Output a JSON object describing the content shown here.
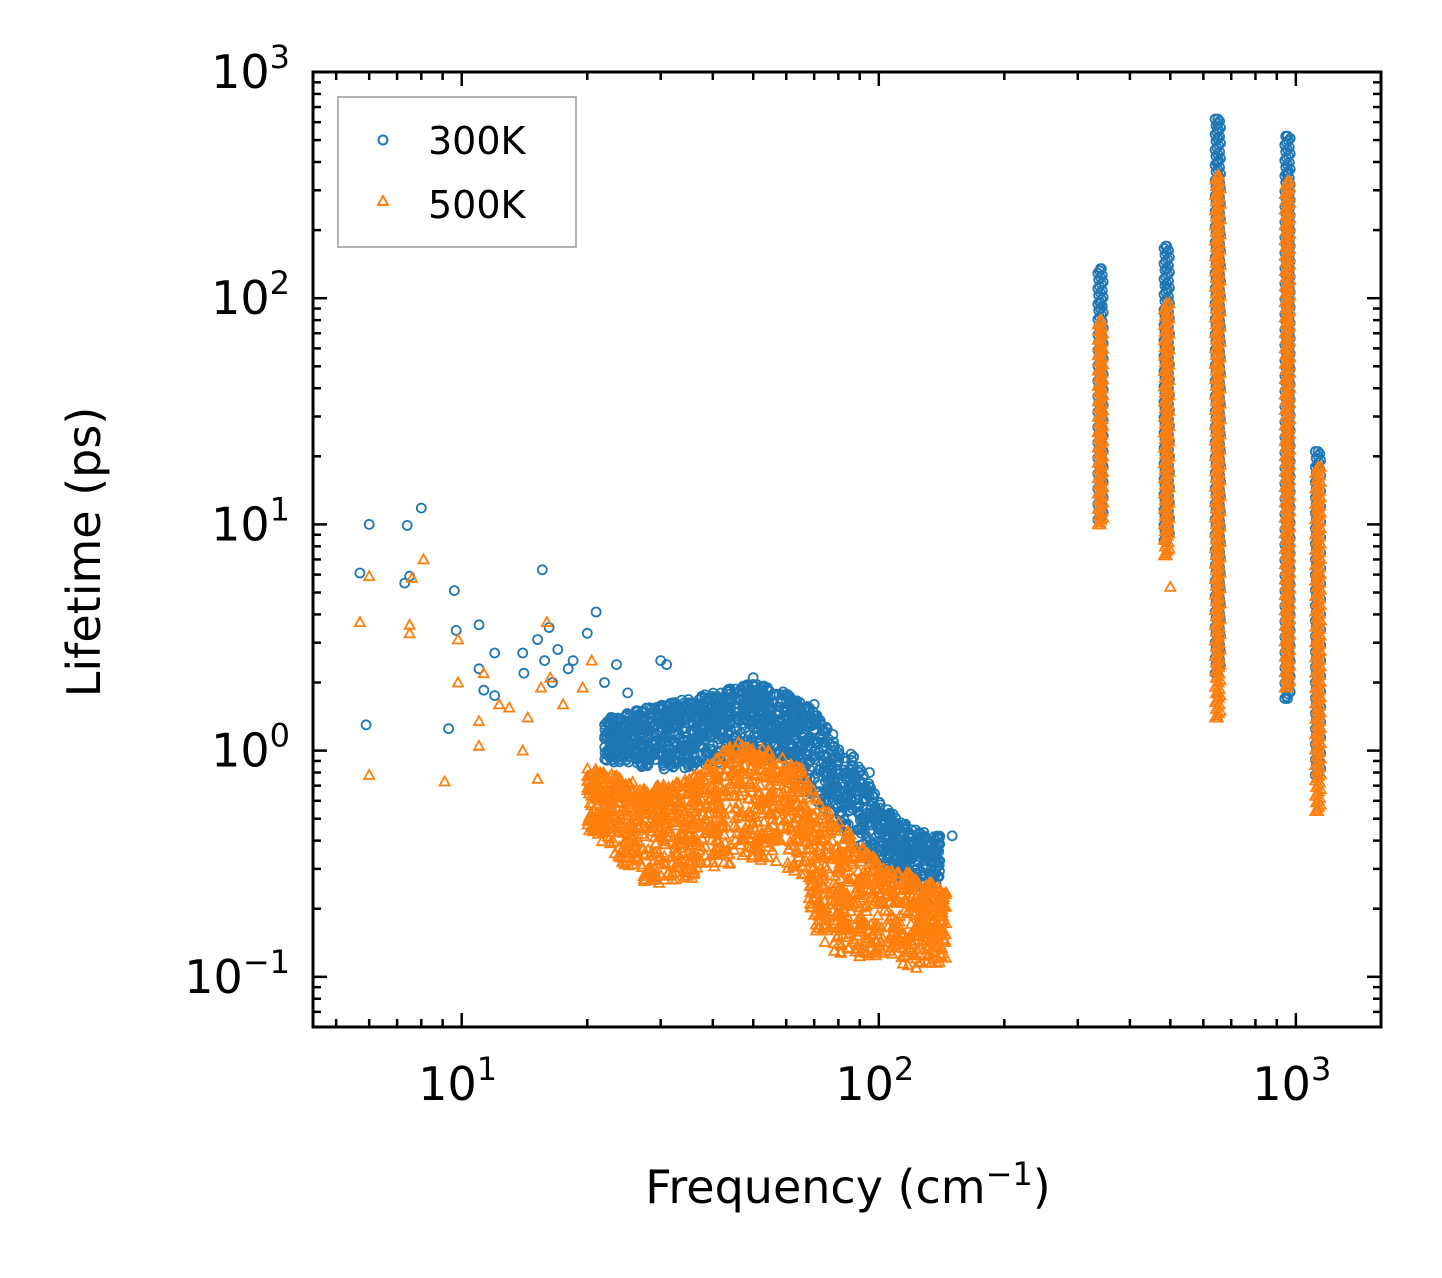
{
  "chart_data": {
    "type": "scatter",
    "title": "",
    "xlabel": "Frequency (cm",
    "xlabel_exp": "−1",
    "xlabel_suffix": ")",
    "ylabel": "Lifetime (ps)",
    "xscale": "log",
    "yscale": "log",
    "xlim": [
      4.4,
      1600
    ],
    "ylim": [
      0.06,
      1000
    ],
    "x_ticks": [
      {
        "value": 10,
        "base": "10",
        "exp": "1"
      },
      {
        "value": 100,
        "base": "10",
        "exp": "2"
      },
      {
        "value": 1000,
        "base": "10",
        "exp": "3"
      }
    ],
    "y_ticks": [
      {
        "value": 0.1,
        "base": "10",
        "exp": "−1"
      },
      {
        "value": 1,
        "base": "10",
        "exp": "0"
      },
      {
        "value": 10,
        "base": "10",
        "exp": "1"
      },
      {
        "value": 100,
        "base": "10",
        "exp": "2"
      },
      {
        "value": 1000,
        "base": "10",
        "exp": "3"
      }
    ],
    "legend_position": "top-left",
    "series": [
      {
        "name": "300K",
        "marker": "circle",
        "color": "#1f77b4",
        "points": [
          [
            5.7,
            6.1
          ],
          [
            5.9,
            1.3
          ],
          [
            6.0,
            10.0
          ],
          [
            7.3,
            5.5
          ],
          [
            7.4,
            9.9
          ],
          [
            7.5,
            5.9
          ],
          [
            8.0,
            11.8
          ],
          [
            9.3,
            1.25
          ],
          [
            9.6,
            5.1
          ],
          [
            9.7,
            3.4
          ],
          [
            11.0,
            3.6
          ],
          [
            11.0,
            2.3
          ],
          [
            11.3,
            1.85
          ],
          [
            12.0,
            2.7
          ],
          [
            12.0,
            1.75
          ],
          [
            14.0,
            2.7
          ],
          [
            14.1,
            2.2
          ],
          [
            15.2,
            3.1
          ],
          [
            15.6,
            6.3
          ],
          [
            15.8,
            2.5
          ],
          [
            16.2,
            3.5
          ],
          [
            16.5,
            2.0
          ],
          [
            17.0,
            2.8
          ],
          [
            18.0,
            2.3
          ],
          [
            18.5,
            2.5
          ],
          [
            20.0,
            3.3
          ],
          [
            21.0,
            4.1
          ],
          [
            22.0,
            2.0
          ],
          [
            23.5,
            2.4
          ],
          [
            25.0,
            1.8
          ],
          [
            30.0,
            2.5
          ],
          [
            31.0,
            2.4
          ],
          [
            50.0,
            2.1
          ],
          [
            54.0,
            1.9
          ],
          [
            70.0,
            1.6
          ],
          [
            95.0,
            0.8
          ],
          [
            150.0,
            0.42
          ],
          [
            340,
            135
          ],
          [
            340,
            95
          ],
          [
            340,
            90
          ],
          [
            340,
            60
          ],
          [
            340,
            40
          ],
          [
            340,
            25
          ],
          [
            340,
            15
          ],
          [
            340,
            10.5
          ],
          [
            490,
            170
          ],
          [
            490,
            135
          ],
          [
            490,
            110
          ],
          [
            490,
            80
          ],
          [
            490,
            50
          ],
          [
            490,
            30
          ],
          [
            490,
            18
          ],
          [
            490,
            12
          ],
          [
            490,
            8.5
          ],
          [
            650,
            620
          ],
          [
            650,
            560
          ],
          [
            650,
            510
          ],
          [
            650,
            400
          ],
          [
            650,
            300
          ],
          [
            650,
            200
          ],
          [
            650,
            160
          ],
          [
            650,
            120
          ],
          [
            650,
            60
          ],
          [
            650,
            30
          ],
          [
            650,
            12
          ],
          [
            650,
            5
          ],
          [
            650,
            3
          ],
          [
            650,
            2.2
          ],
          [
            955,
            520
          ],
          [
            955,
            360
          ],
          [
            955,
            120
          ],
          [
            955,
            95
          ],
          [
            955,
            55
          ],
          [
            955,
            40
          ],
          [
            955,
            17
          ],
          [
            955,
            12
          ],
          [
            955,
            8
          ],
          [
            955,
            5
          ],
          [
            955,
            3
          ],
          [
            955,
            1.7
          ],
          [
            1130,
            21
          ],
          [
            1130,
            18
          ],
          [
            1130,
            12
          ],
          [
            1130,
            6
          ],
          [
            1130,
            3
          ],
          [
            1130,
            1.5
          ],
          [
            1130,
            0.9
          ],
          [
            1130,
            0.78
          ]
        ]
      },
      {
        "name": "500K",
        "marker": "triangle",
        "color": "#ff7f0e",
        "points": [
          [
            5.7,
            3.7
          ],
          [
            6.0,
            0.78
          ],
          [
            6.0,
            5.9
          ],
          [
            7.5,
            3.3
          ],
          [
            7.5,
            3.6
          ],
          [
            7.6,
            5.8
          ],
          [
            8.1,
            7.0
          ],
          [
            9.1,
            0.73
          ],
          [
            9.8,
            3.1
          ],
          [
            9.8,
            2.0
          ],
          [
            11.0,
            1.35
          ],
          [
            11.0,
            1.05
          ],
          [
            11.3,
            2.2
          ],
          [
            12.3,
            1.6
          ],
          [
            13.0,
            1.55
          ],
          [
            14.0,
            1.0
          ],
          [
            14.4,
            1.4
          ],
          [
            15.2,
            0.75
          ],
          [
            15.5,
            1.9
          ],
          [
            16.0,
            3.7
          ],
          [
            16.3,
            2.1
          ],
          [
            17.5,
            1.6
          ],
          [
            19.5,
            1.9
          ],
          [
            20.5,
            2.5
          ],
          [
            340,
            80
          ],
          [
            340,
            60
          ],
          [
            340,
            40
          ],
          [
            340,
            25
          ],
          [
            340,
            15
          ],
          [
            340,
            10
          ],
          [
            490,
            95
          ],
          [
            490,
            60
          ],
          [
            490,
            40
          ],
          [
            490,
            25
          ],
          [
            490,
            15
          ],
          [
            490,
            9
          ],
          [
            490,
            7.3
          ],
          [
            500,
            5.3
          ],
          [
            650,
            350
          ],
          [
            650,
            320
          ],
          [
            650,
            200
          ],
          [
            650,
            150
          ],
          [
            650,
            100
          ],
          [
            650,
            50
          ],
          [
            650,
            20
          ],
          [
            650,
            8
          ],
          [
            650,
            4
          ],
          [
            650,
            2.5
          ],
          [
            650,
            1.8
          ],
          [
            650,
            1.4
          ],
          [
            955,
            330
          ],
          [
            955,
            220
          ],
          [
            955,
            110
          ],
          [
            955,
            80
          ],
          [
            955,
            55
          ],
          [
            955,
            38
          ],
          [
            955,
            15
          ],
          [
            955,
            8
          ],
          [
            955,
            4
          ],
          [
            955,
            2.5
          ],
          [
            955,
            1.9
          ],
          [
            1130,
            18
          ],
          [
            1130,
            12
          ],
          [
            1130,
            6
          ],
          [
            1130,
            3
          ],
          [
            1130,
            1.2
          ],
          [
            1130,
            0.6
          ],
          [
            1130,
            0.54
          ]
        ]
      }
    ],
    "clusters": [
      {
        "series": "300K",
        "band": [
          [
            22,
            0.9,
            1.4
          ],
          [
            30,
            0.8,
            1.6
          ],
          [
            40,
            0.85,
            1.8
          ],
          [
            50,
            0.95,
            2.0
          ],
          [
            60,
            0.9,
            1.8
          ],
          [
            70,
            0.6,
            1.5
          ],
          [
            80,
            0.45,
            1.1
          ],
          [
            90,
            0.35,
            0.9
          ],
          [
            100,
            0.3,
            0.6
          ],
          [
            120,
            0.25,
            0.45
          ],
          [
            140,
            0.25,
            0.42
          ]
        ],
        "count": 1600,
        "seed": 11
      },
      {
        "series": "500K",
        "band": [
          [
            20,
            0.45,
            0.85
          ],
          [
            28,
            0.25,
            0.7
          ],
          [
            35,
            0.27,
            0.75
          ],
          [
            45,
            0.32,
            1.1
          ],
          [
            55,
            0.32,
            1.0
          ],
          [
            65,
            0.28,
            0.85
          ],
          [
            72,
            0.14,
            0.6
          ],
          [
            80,
            0.12,
            0.5
          ],
          [
            95,
            0.12,
            0.35
          ],
          [
            110,
            0.12,
            0.3
          ],
          [
            125,
            0.1,
            0.28
          ],
          [
            145,
            0.12,
            0.24
          ]
        ],
        "count": 1700,
        "seed": 29
      }
    ]
  },
  "legend": {
    "items": [
      {
        "label": "300K",
        "color": "#1f77b4",
        "marker": "circle"
      },
      {
        "label": "500K",
        "color": "#ff7f0e",
        "marker": "triangle"
      }
    ]
  }
}
